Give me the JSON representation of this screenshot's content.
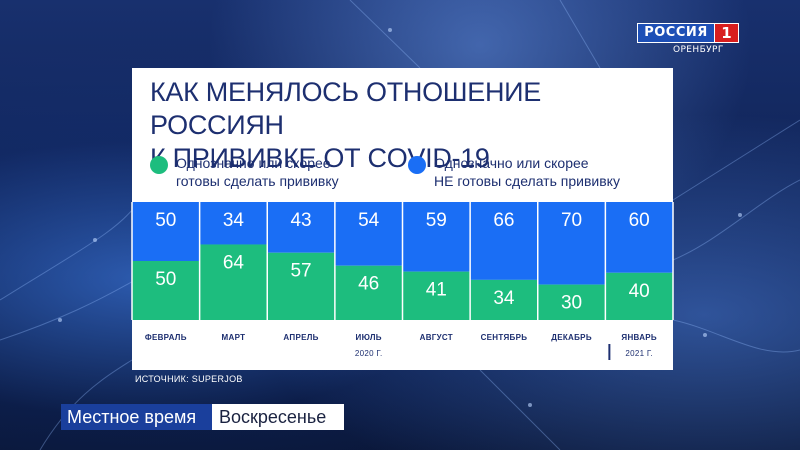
{
  "channel": {
    "name": "РОССИЯ",
    "number": "1",
    "region": "ОРЕНБУРГ"
  },
  "infographic": {
    "title_line1": "КАК МЕНЯЛОСЬ ОТНОШЕНИЕ РОССИЯН",
    "title_line2": "К ПРИВИВКЕ ОТ COVID-19",
    "source": "ИСТОЧНИК: SUPERJOB"
  },
  "legend": [
    {
      "line1": "Однозначно или скорее",
      "line2": "готовы сделать прививку",
      "color": "#1dbd7e"
    },
    {
      "line1": "Однозначно или скорее",
      "line2": "НЕ готовы сделать прививку",
      "color": "#1a6ef5"
    }
  ],
  "colors": {
    "ready": "#1dbd7e",
    "not_ready": "#1a6ef5",
    "title": "#1d2f70"
  },
  "chart_data": {
    "type": "bar",
    "stacked": true,
    "title": "КАК МЕНЯЛОСЬ ОТНОШЕНИЕ РОССИЯН К ПРИВИВКЕ ОТ COVID-19",
    "categories": [
      "ФЕВРАЛЬ",
      "МАРТ",
      "АПРЕЛЬ",
      "ИЮЛЬ",
      "АВГУСТ",
      "СЕНТЯБРЬ",
      "ДЕКАБРЬ",
      "ЯНВАРЬ"
    ],
    "series": [
      {
        "name": "Однозначно или скорее готовы сделать прививку",
        "values": [
          50,
          64,
          57,
          46,
          41,
          34,
          30,
          40
        ]
      },
      {
        "name": "Однозначно или скорее НЕ готовы сделать прививку",
        "values": [
          50,
          34,
          43,
          54,
          59,
          66,
          70,
          60
        ]
      }
    ],
    "ylim": [
      0,
      100
    ],
    "year_groups": [
      {
        "label": "2020 Г.",
        "from": 0,
        "to": 6
      },
      {
        "label": "2021 Г.",
        "from": 7,
        "to": 7
      }
    ],
    "legend_position": "top",
    "grid": false
  },
  "ticker": {
    "program": "Местное время",
    "day": "Воскресенье"
  }
}
